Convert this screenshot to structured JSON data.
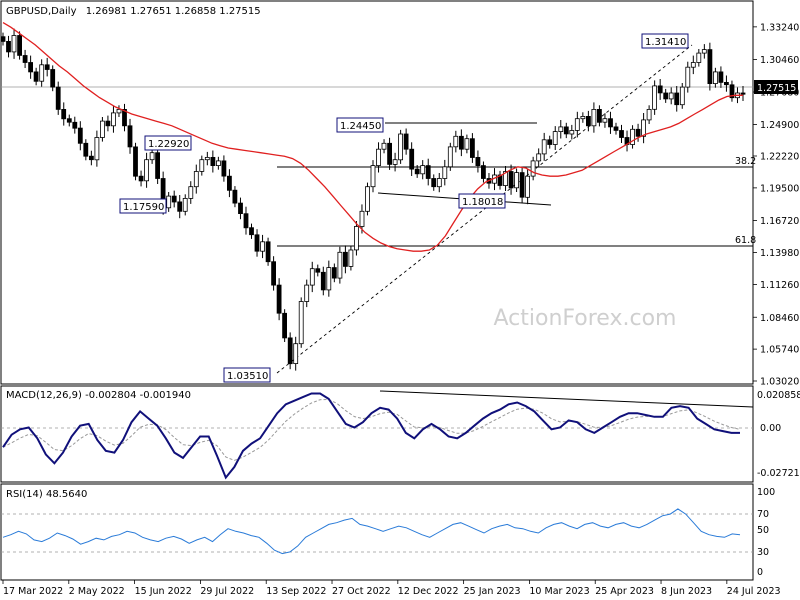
{
  "chart_data": [
    {
      "type": "candlestick",
      "title": "GBPUSD,Daily",
      "ohlc_label": "1.26981 1.27651 1.26858 1.27515",
      "current_price": 1.27515,
      "current_price_label": "1.27515",
      "watermark": "ActionForex.com",
      "ylim": [
        1.0302,
        1.3502
      ],
      "y_ticks": [
        "1.33240",
        "1.30460",
        "1.27680",
        "1.24900",
        "1.22220",
        "1.19500",
        "1.16720",
        "1.13980",
        "1.11260",
        "1.08460",
        "1.05740",
        "1.03020"
      ],
      "x_labels": [
        "17 Mar 2022",
        "2 May 2022",
        "15 Jun 2022",
        "29 Jul 2022",
        "13 Sep 2022",
        "27 Oct 2022",
        "12 Dec 2022",
        "25 Jan 2023",
        "10 Mar 2023",
        "25 Apr 2023",
        "8 Jun 2023",
        "24 Jul 2023"
      ],
      "series": [
        {
          "name": "price",
          "values": [
            1.32,
            1.311,
            1.325,
            1.308,
            1.302,
            1.294,
            1.286,
            1.3,
            1.296,
            1.281,
            1.262,
            1.254,
            1.251,
            1.246,
            1.233,
            1.222,
            1.219,
            1.238,
            1.252,
            1.248,
            1.259,
            1.262,
            1.248,
            1.23,
            1.205,
            1.201,
            1.219,
            1.225,
            1.203,
            1.178,
            1.188,
            1.183,
            1.175,
            1.186,
            1.196,
            1.209,
            1.219,
            1.221,
            1.214,
            1.218,
            1.205,
            1.193,
            1.182,
            1.173,
            1.161,
            1.155,
            1.141,
            1.149,
            1.132,
            1.112,
            1.088,
            1.067,
            1.045,
            1.062,
            1.098,
            1.112,
            1.126,
            1.123,
            1.108,
            1.127,
            1.118,
            1.14,
            1.128,
            1.142,
            1.162,
            1.175,
            1.196,
            1.214,
            1.228,
            1.233,
            1.215,
            1.219,
            1.241,
            1.228,
            1.211,
            1.207,
            1.214,
            1.203,
            1.196,
            1.203,
            1.213,
            1.23,
            1.239,
            1.228,
            1.237,
            1.221,
            1.214,
            1.203,
            1.199,
            1.206,
            1.197,
            1.209,
            1.195,
            1.208,
            1.187,
            1.205,
            1.218,
            1.224,
            1.236,
            1.232,
            1.243,
            1.247,
            1.241,
            1.244,
            1.254,
            1.256,
            1.248,
            1.262,
            1.251,
            1.254,
            1.247,
            1.244,
            1.238,
            1.232,
            1.245,
            1.239,
            1.253,
            1.262,
            1.282,
            1.276,
            1.271,
            1.276,
            1.266,
            1.281,
            1.298,
            1.302,
            1.31,
            1.313,
            1.284,
            1.294,
            1.285,
            1.283,
            1.272,
            1.276,
            1.275
          ]
        },
        {
          "name": "ma",
          "values": [
            1.336,
            1.332,
            1.327,
            1.322,
            1.317,
            1.311,
            1.305,
            1.299,
            1.294,
            1.288,
            1.282,
            1.277,
            1.272,
            1.268,
            1.264,
            1.261,
            1.258,
            1.256,
            1.254,
            1.252,
            1.25,
            1.248,
            1.245,
            1.242,
            1.239,
            1.236,
            1.233,
            1.231,
            1.229,
            1.228,
            1.227,
            1.226,
            1.225,
            1.224,
            1.223,
            1.222,
            1.22,
            1.216,
            1.21,
            1.203,
            1.196,
            1.188,
            1.18,
            1.172,
            1.164,
            1.157,
            1.152,
            1.148,
            1.145,
            1.143,
            1.142,
            1.141,
            1.141,
            1.142,
            1.146,
            1.154,
            1.165,
            1.176,
            1.186,
            1.194,
            1.2,
            1.203,
            1.206,
            1.21,
            1.213,
            1.212,
            1.208,
            1.206,
            1.205,
            1.205,
            1.206,
            1.208,
            1.21,
            1.214,
            1.218,
            1.222,
            1.226,
            1.23,
            1.234,
            1.238,
            1.241,
            1.243,
            1.245,
            1.247,
            1.25,
            1.254,
            1.258,
            1.262,
            1.266,
            1.27,
            1.273,
            1.274,
            1.274
          ]
        },
        {
          "name": "MACD",
          "values": [
            -0.01,
            -0.003,
            0.0,
            0.001,
            -0.005,
            -0.014,
            -0.019,
            -0.013,
            -0.004,
            0.002,
            0.003,
            -0.006,
            -0.012,
            -0.013,
            -0.006,
            0.004,
            0.01,
            0.006,
            0.002,
            -0.005,
            -0.013,
            -0.016,
            -0.01,
            -0.004,
            -0.004,
            -0.015,
            -0.027,
            -0.021,
            -0.012,
            -0.008,
            -0.005,
            0.002,
            0.009,
            0.014,
            0.016,
            0.018,
            0.02,
            0.02,
            0.017,
            0.01,
            0.003,
            0.001,
            0.004,
            0.009,
            0.012,
            0.011,
            0.006,
            -0.002,
            -0.005,
            0.0,
            0.003,
            0.0,
            -0.004,
            -0.005,
            -0.002,
            0.002,
            0.006,
            0.009,
            0.011,
            0.014,
            0.015,
            0.013,
            0.01,
            0.005,
            0.0,
            0.001,
            0.005,
            0.004,
            0.0,
            -0.002,
            0.001,
            0.004,
            0.007,
            0.009,
            0.009,
            0.008,
            0.007,
            0.007,
            0.012,
            0.013,
            0.012,
            0.006,
            0.003,
            0.0,
            -0.001,
            -0.002,
            -0.002
          ]
        },
        {
          "name": "RSI(14)",
          "values": [
            45,
            48,
            52,
            49,
            42,
            40,
            44,
            50,
            47,
            43,
            37,
            40,
            44,
            42,
            46,
            48,
            52,
            50,
            45,
            42,
            40,
            44,
            46,
            43,
            38,
            42,
            45,
            40,
            48,
            55,
            52,
            50,
            47,
            45,
            38,
            30,
            26,
            28,
            35,
            45,
            50,
            55,
            60,
            62,
            65,
            67,
            60,
            58,
            55,
            52,
            55,
            58,
            56,
            52,
            48,
            45,
            50,
            55,
            60,
            62,
            58,
            54,
            50,
            55,
            58,
            60,
            56,
            55,
            52,
            50,
            56,
            60,
            62,
            58,
            55,
            60,
            62,
            58,
            56,
            60,
            62,
            58,
            56,
            60,
            65,
            70,
            72,
            78,
            72,
            62,
            52,
            48,
            46,
            45,
            49,
            48
          ]
        }
      ],
      "ma_color": "#e02020",
      "annotations": [
        "1.31410",
        "1.24450",
        "1.22920",
        "1.17590",
        "1.18018",
        "1.03510",
        "38.2",
        "61.8"
      ],
      "indicators": [
        {
          "name": "MACD",
          "label": "MACD(12,26,9) -0.002804 -0.001940",
          "ylim": [
            -0.027213,
            0.020858
          ],
          "y_ticks": [
            "0.020858",
            "0.00",
            "-0.027213"
          ],
          "color": "#10107a"
        },
        {
          "name": "RSI(14)",
          "label": "RSI(14) 48.5640",
          "ylim": [
            0,
            100
          ],
          "y_ticks": [
            "100",
            "70",
            "50",
            "30",
            "0"
          ],
          "color": "#2a7bd8"
        }
      ]
    }
  ]
}
